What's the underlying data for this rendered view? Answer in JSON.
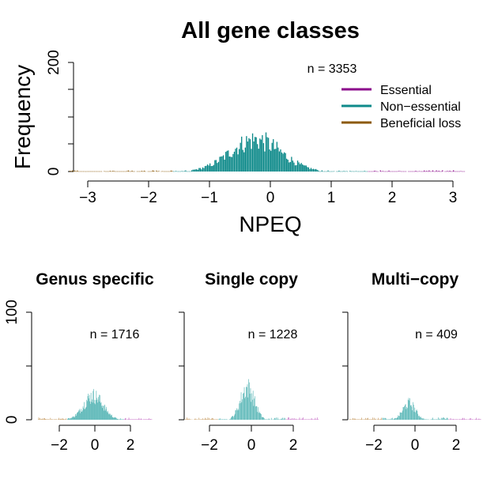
{
  "colors": {
    "essential": "#8B0A8B",
    "non_essential": "#0E8A8A",
    "beneficial_loss": "#8C5A0A",
    "essential_light": "#C060C0",
    "non_essential_light": "#4AB0B0",
    "beneficial_loss_light": "#C09050"
  },
  "chart_data": [
    {
      "type": "histogram",
      "title": "All gene classes",
      "xlabel": "NPEQ",
      "ylabel": "Frequency",
      "xlim": [
        -3.3,
        3.2
      ],
      "ylim": [
        0,
        200
      ],
      "xticks": [
        -3,
        -2,
        -1,
        0,
        1,
        2,
        3
      ],
      "yticks": [
        0,
        200
      ],
      "n_label": "n = 3353",
      "n": 3353,
      "center": -0.25,
      "spread": 0.42,
      "peak": 68,
      "class_thresholds": [
        -1.6,
        1.6
      ],
      "legend": {
        "position": "top-right",
        "entries": [
          "Essential",
          "Non−essential",
          "Beneficial loss"
        ]
      }
    },
    {
      "type": "histogram",
      "title": "Genus specific",
      "xlim": [
        -3.2,
        3.2
      ],
      "ylim": [
        0,
        100
      ],
      "xticks": [
        -2,
        0,
        2
      ],
      "yticks": [
        0,
        100
      ],
      "n_label": "n = 1716",
      "n": 1716,
      "center": -0.1,
      "spread": 0.55,
      "peak": 26,
      "class_thresholds": [
        -1.6,
        1.6
      ]
    },
    {
      "type": "histogram",
      "title": "Single copy",
      "xlim": [
        -3.2,
        3.2
      ],
      "xticks": [
        -2,
        0,
        2
      ],
      "n_label": "n = 1228",
      "n": 1228,
      "center": -0.2,
      "spread": 0.33,
      "peak": 35,
      "class_thresholds": [
        -1.6,
        1.6
      ]
    },
    {
      "type": "histogram",
      "title": "Multi−copy",
      "xlim": [
        -3.2,
        3.2
      ],
      "xticks": [
        -2,
        0,
        2
      ],
      "n_label": "n = 409",
      "n": 409,
      "center": -0.3,
      "spread": 0.3,
      "peak": 18,
      "class_thresholds": [
        -1.6,
        1.6
      ]
    }
  ]
}
